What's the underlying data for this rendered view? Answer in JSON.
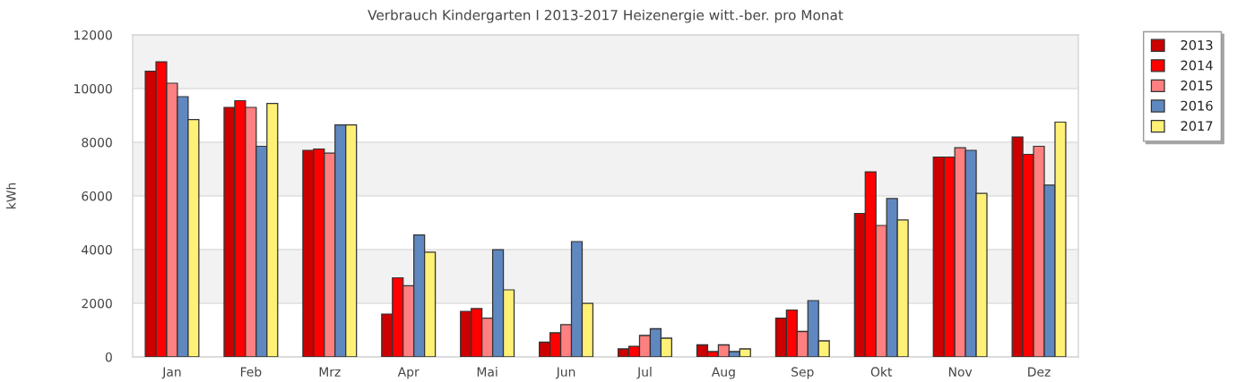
{
  "chart_data": {
    "type": "bar",
    "title": "Verbrauch Kindergarten I 2013-2017 Heizenergie witt.-ber. pro Monat",
    "ylabel": "kWh",
    "categories": [
      "Jan",
      "Feb",
      "Mrz",
      "Apr",
      "Mai",
      "Jun",
      "Jul",
      "Aug",
      "Sep",
      "Okt",
      "Nov",
      "Dez"
    ],
    "series": [
      {
        "name": "2013",
        "color": "#cc0000",
        "values": [
          10650,
          9300,
          7700,
          1600,
          1700,
          550,
          300,
          450,
          1450,
          5350,
          7450,
          8200
        ]
      },
      {
        "name": "2014",
        "color": "#ff0000",
        "values": [
          11000,
          9550,
          7750,
          2950,
          1800,
          900,
          400,
          200,
          1750,
          6900,
          7450,
          7550
        ]
      },
      {
        "name": "2015",
        "color": "#ff8080",
        "values": [
          10200,
          9300,
          7600,
          2650,
          1450,
          1200,
          800,
          450,
          950,
          4900,
          7800,
          7850
        ]
      },
      {
        "name": "2016",
        "color": "#6088c0",
        "values": [
          9700,
          7850,
          8650,
          4550,
          4000,
          4300,
          1050,
          200,
          2100,
          5900,
          7700,
          6400
        ]
      },
      {
        "name": "2017",
        "color": "#fff176",
        "values": [
          8850,
          9450,
          8650,
          3900,
          2500,
          2000,
          700,
          300,
          600,
          5100,
          6100,
          8750
        ]
      }
    ],
    "ylim": [
      0,
      12000
    ],
    "yticks": [
      0,
      2000,
      4000,
      6000,
      8000,
      10000,
      12000
    ],
    "bands": [
      {
        "axis": "y",
        "from": 2000,
        "to": 4000,
        "color": "#f2f2f2"
      },
      {
        "axis": "y",
        "from": 6000,
        "to": 8000,
        "color": "#f2f2f2"
      },
      {
        "axis": "y",
        "from": 10000,
        "to": 12000,
        "color": "#f2f2f2"
      }
    ],
    "grid": "y",
    "legend": "top right"
  }
}
